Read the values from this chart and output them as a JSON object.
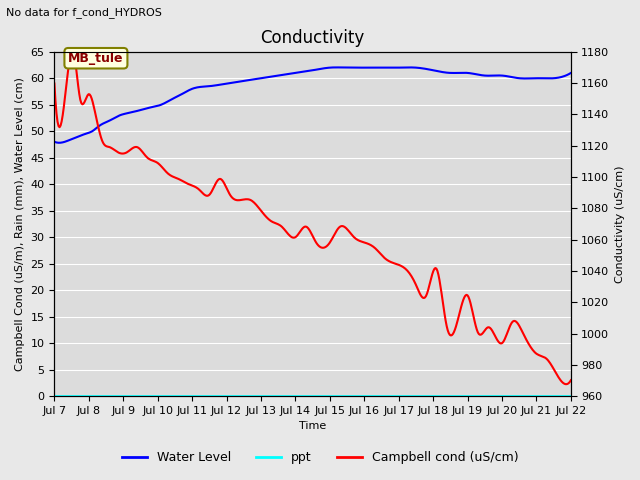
{
  "title": "Conductivity",
  "subtitle": "No data for f_cond_HYDROS",
  "xlabel": "Time",
  "ylabel_left": "Campbell Cond (uS/m), Rain (mm), Water Level (cm)",
  "ylabel_right": "Conductivity (uS/cm)",
  "ylim_left": [
    0,
    65
  ],
  "ylim_right": [
    960,
    1180
  ],
  "annotation_text": "MB_tule",
  "legend_labels": [
    "Water Level",
    "ppt",
    "Campbell cond (uS/cm)"
  ],
  "xtick_labels": [
    "Jul 7",
    "Jul 8",
    "Jul 9",
    "Jul 10",
    "Jul 11",
    "Jul 12",
    "Jul 13",
    "Jul 14",
    "Jul 15",
    "Jul 16",
    "Jul 17",
    "Jul 18",
    "Jul 19",
    "Jul 20",
    "Jul 21",
    "Jul 22"
  ],
  "title_fontsize": 12,
  "label_fontsize": 8,
  "tick_fontsize": 8,
  "figsize": [
    6.4,
    4.8
  ],
  "dpi": 100
}
